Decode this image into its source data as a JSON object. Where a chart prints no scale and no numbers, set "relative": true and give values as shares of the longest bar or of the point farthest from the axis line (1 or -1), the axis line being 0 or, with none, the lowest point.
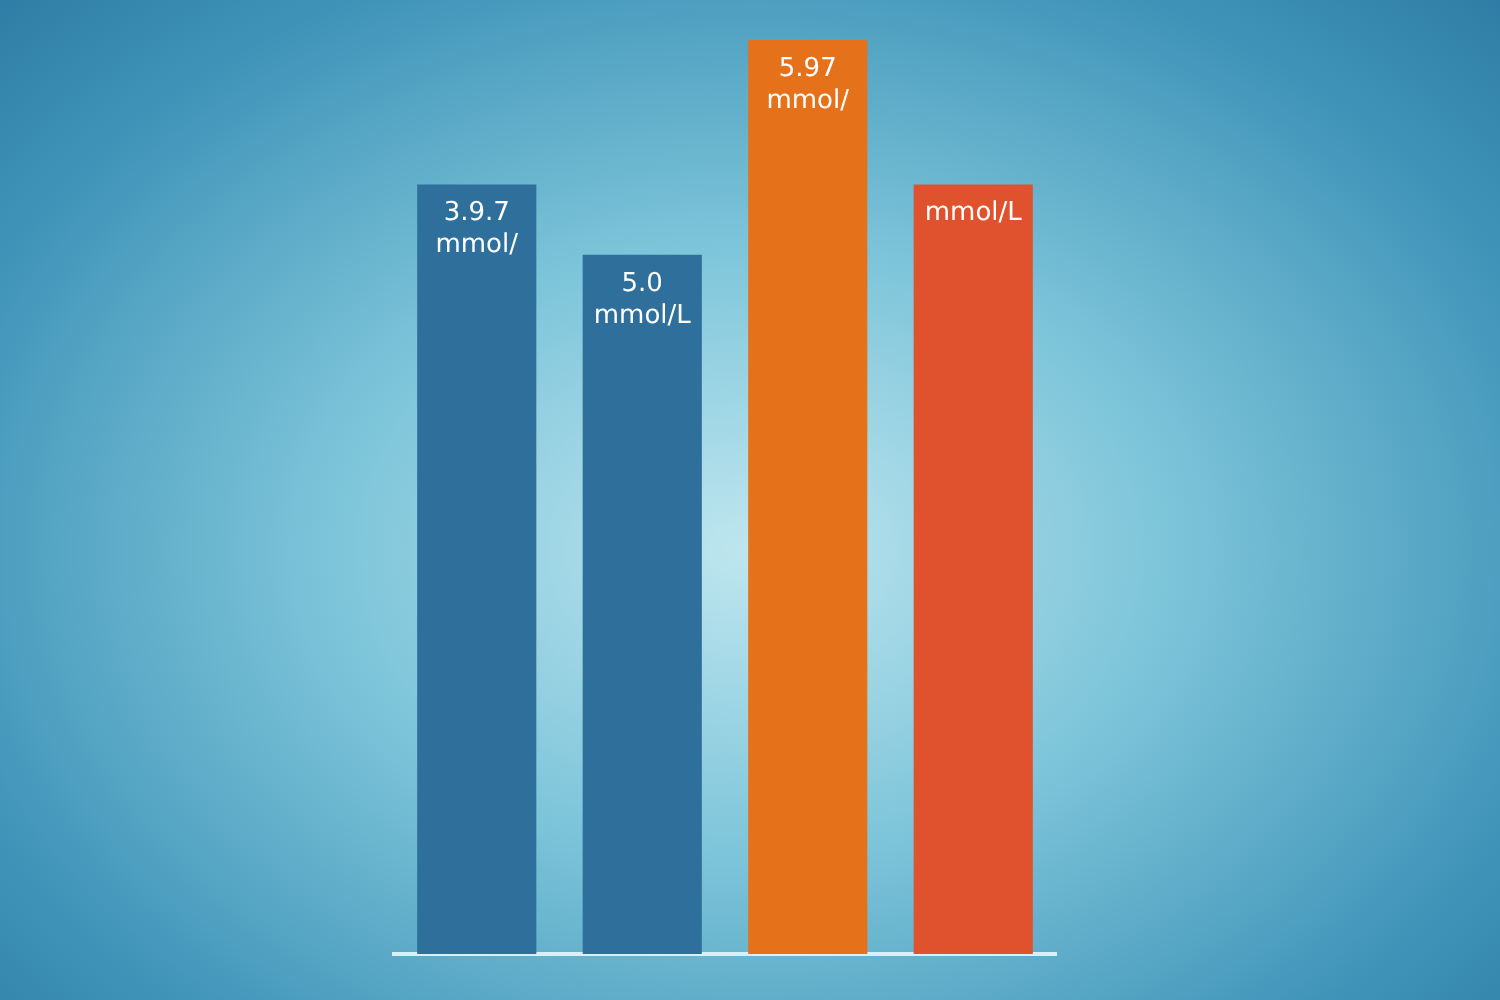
{
  "chart_data": {
    "type": "bar",
    "relative": true,
    "categories": [
      null,
      null,
      null,
      null
    ],
    "values": [
      0.842,
      0.765,
      1,
      0.842
    ],
    "colors": [
      "#2e6f9c",
      "#2e6f9c",
      "#e5711a",
      "#e0522e"
    ],
    "annotations": [
      "3.9.7 mmol/",
      "5.0 mmol/L",
      "5.97 mmol/",
      "mmol/L"
    ],
    "grid": false,
    "legend": false
  }
}
